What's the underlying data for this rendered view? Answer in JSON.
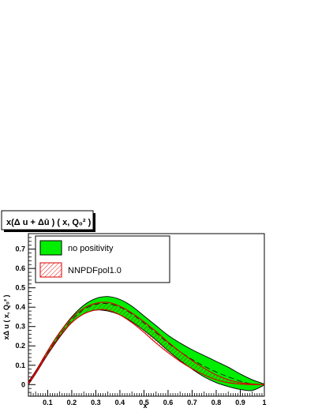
{
  "chart_data": {
    "type": "line",
    "title": "x(Δ u + Δū ) ( x, Q₀² )",
    "xlabel": "x",
    "ylabel": "xΔ u ( x, Q₀² )",
    "xlim": [
      0.02,
      1.0
    ],
    "ylim": [
      -0.06,
      0.78
    ],
    "xticks": [
      0.1,
      0.2,
      0.3,
      0.4,
      0.5,
      0.6,
      0.7,
      0.8,
      0.9,
      1
    ],
    "xtick_labels": [
      "0.1",
      "0.2",
      "0.3",
      "0.4",
      "0.5",
      "0.6",
      "0.7",
      "0.8",
      "0.9",
      "1"
    ],
    "yticks": [
      0,
      0.1,
      0.2,
      0.3,
      0.4,
      0.5,
      0.6,
      0.7
    ],
    "ytick_labels": [
      "0",
      "0.1",
      "0.2",
      "0.3",
      "0.4",
      "0.5",
      "0.6",
      "0.7"
    ],
    "legend_position": "top-left",
    "series": [
      {
        "name": "no positivity",
        "kind": "band",
        "fill": "#00ee00",
        "edge": "#000000",
        "x": [
          0.02,
          0.05,
          0.1,
          0.15,
          0.2,
          0.25,
          0.3,
          0.35,
          0.4,
          0.45,
          0.5,
          0.55,
          0.6,
          0.65,
          0.7,
          0.75,
          0.8,
          0.85,
          0.9,
          0.95,
          1.0
        ],
        "upper": [
          0.015,
          0.07,
          0.175,
          0.27,
          0.35,
          0.41,
          0.445,
          0.455,
          0.44,
          0.405,
          0.355,
          0.305,
          0.255,
          0.215,
          0.18,
          0.15,
          0.12,
          0.09,
          0.055,
          0.025,
          0.003
        ],
        "lower": [
          0.0,
          0.055,
          0.155,
          0.245,
          0.32,
          0.365,
          0.385,
          0.38,
          0.36,
          0.325,
          0.28,
          0.23,
          0.175,
          0.125,
          0.08,
          0.04,
          0.01,
          -0.01,
          -0.025,
          -0.03,
          -0.002
        ],
        "central": [
          0.008,
          0.062,
          0.165,
          0.258,
          0.335,
          0.388,
          0.415,
          0.418,
          0.4,
          0.365,
          0.318,
          0.268,
          0.215,
          0.17,
          0.13,
          0.095,
          0.065,
          0.04,
          0.018,
          0.003,
          0.0
        ]
      },
      {
        "name": "NNPDFpol1.0",
        "kind": "hatched-band",
        "color": "#dd0000",
        "x": [
          0.02,
          0.05,
          0.1,
          0.15,
          0.2,
          0.25,
          0.3,
          0.35,
          0.4,
          0.45,
          0.5,
          0.55,
          0.6,
          0.65,
          0.7,
          0.75,
          0.8,
          0.85,
          0.9,
          0.95,
          1.0
        ],
        "upper": [
          0.012,
          0.065,
          0.175,
          0.27,
          0.345,
          0.395,
          0.42,
          0.425,
          0.405,
          0.37,
          0.325,
          0.275,
          0.22,
          0.17,
          0.125,
          0.085,
          0.05,
          0.025,
          0.01,
          0.003,
          0.0
        ],
        "lower": [
          0.004,
          0.058,
          0.16,
          0.25,
          0.32,
          0.365,
          0.385,
          0.385,
          0.36,
          0.32,
          0.27,
          0.215,
          0.165,
          0.12,
          0.082,
          0.05,
          0.025,
          0.01,
          0.003,
          0.0,
          0.0
        ]
      }
    ]
  }
}
